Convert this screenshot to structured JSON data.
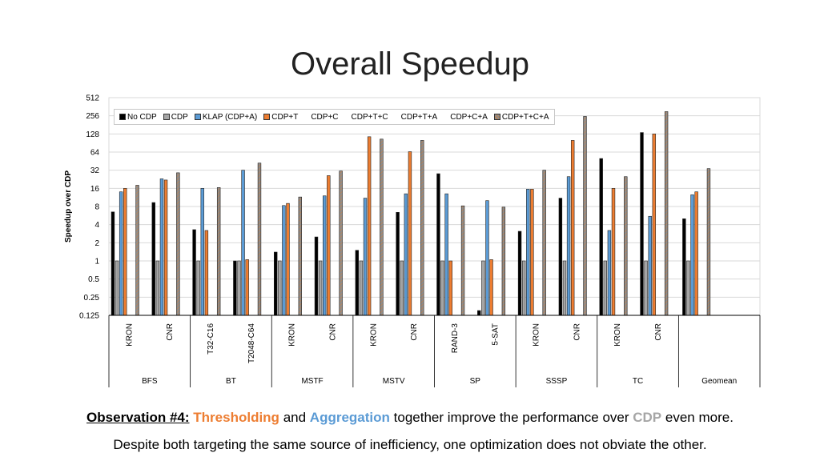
{
  "slide": {
    "title": "Overall Speedup",
    "observation_label": "Observation #4:",
    "observation_word_1": "Thresholding",
    "observation_and": "and",
    "observation_word_2": "Aggregation",
    "observation_mid": "together improve the performance over",
    "observation_word_3": "CDP",
    "observation_end": "even more.",
    "subtitle": "Despite both targeting the same source of inefficiency, one optimization does not obviate the other."
  },
  "colors": {
    "No CDP": "#000000",
    "CDP": "#a5a5a5",
    "KLAP (CDP+A)": "#5b9bd5",
    "CDP+T": "#ed7d31",
    "CDP+T+C+A": "#7f7f7f"
  },
  "chart_data": {
    "type": "bar",
    "ylabel": "Speedup over CDP",
    "yscale": "log2",
    "ylim": [
      0.125,
      512
    ],
    "yticks": [
      "0.125",
      "0.25",
      "0.5",
      "1",
      "2",
      "4",
      "8",
      "16",
      "32",
      "64",
      "128",
      "256",
      "512"
    ],
    "grid": true,
    "legend_position": "top-left",
    "legend": [
      "No CDP",
      "CDP",
      "KLAP (CDP+A)",
      "CDP+T",
      "CDP+C",
      "CDP+T+C",
      "CDP+T+A",
      "CDP+C+A",
      "CDP+T+C+A"
    ],
    "groups": [
      {
        "name": "BFS",
        "categories": [
          "KRON",
          "CNR"
        ]
      },
      {
        "name": "BT",
        "categories": [
          "T32-C16",
          "T2048-C64"
        ]
      },
      {
        "name": "MSTF",
        "categories": [
          "KRON",
          "CNR"
        ]
      },
      {
        "name": "MSTV",
        "categories": [
          "KRON",
          "CNR"
        ]
      },
      {
        "name": "SP",
        "categories": [
          "RAND-3",
          "5-SAT"
        ]
      },
      {
        "name": "SSSP",
        "categories": [
          "KRON",
          "CNR"
        ]
      },
      {
        "name": "TC",
        "categories": [
          "KRON",
          "CNR"
        ]
      },
      {
        "name": "Geomean",
        "categories": [
          ""
        ]
      }
    ],
    "series": [
      {
        "name": "No CDP",
        "values": [
          6.5,
          9.3,
          3.3,
          1.0,
          1.4,
          2.5,
          1.5,
          6.4,
          28,
          0.15,
          3.1,
          11,
          50,
          135,
          5.0
        ]
      },
      {
        "name": "CDP",
        "values": [
          1,
          1,
          1,
          1,
          1,
          1,
          1,
          1,
          1,
          1,
          1,
          1,
          1,
          1,
          1
        ]
      },
      {
        "name": "KLAP (CDP+A)",
        "values": [
          14,
          23,
          16,
          32,
          8.3,
          12,
          11,
          13,
          13,
          10,
          15.5,
          25,
          3.2,
          5.5,
          12.5
        ]
      },
      {
        "name": "CDP+T",
        "values": [
          16,
          22,
          3.2,
          1.05,
          9.0,
          26,
          115,
          65,
          1.0,
          1.05,
          15.5,
          100,
          16,
          128,
          14
        ]
      },
      {
        "name": "CDP+T+C+A",
        "values": [
          18,
          29,
          16.5,
          42,
          11.5,
          31,
          105,
          100,
          8.2,
          7.8,
          32,
          250,
          25,
          300,
          34
        ]
      }
    ]
  }
}
